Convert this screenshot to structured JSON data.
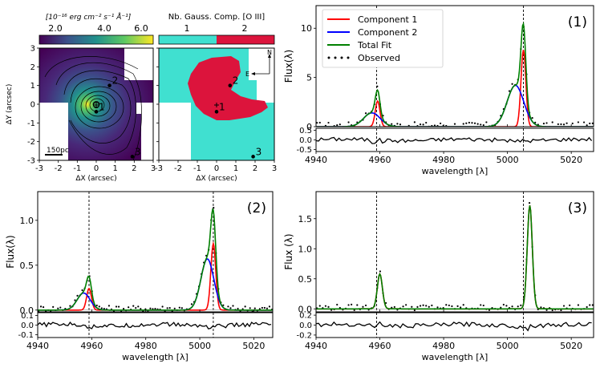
{
  "colorbar_flux": {
    "label": "[10⁻¹⁶ erg cm⁻² s⁻¹ Å⁻¹]",
    "ticks": [
      "2.0",
      "4.0",
      "6.0"
    ]
  },
  "colorbar_ncomp": {
    "label": "Nb. Gauss. Comp. [O III]",
    "ticks": [
      "1",
      "2"
    ],
    "colors": [
      "#40e0d0",
      "#dc143c"
    ]
  },
  "maps": {
    "xlabel": "ΔX (arcsec)",
    "ylabel": "ΔY (arcsec)",
    "ticks": [
      "-3",
      "-2",
      "-1",
      "0",
      "1",
      "2",
      "3"
    ],
    "scalebar": "150pc",
    "compass_n": "N",
    "compass_e": "E",
    "markers": [
      {
        "label": "1",
        "x": 0.0,
        "y": -0.4
      },
      {
        "label": "2",
        "x": 0.7,
        "y": 1.0
      },
      {
        "label": "3",
        "x": 1.9,
        "y": -2.8
      }
    ]
  },
  "chart_data": [
    {
      "type": "line",
      "panel_label": "(1)",
      "xlabel": "wavelength [λ]",
      "ylabel": "Flux(λ)",
      "xlim": [
        4940,
        5027
      ],
      "ylim": [
        0,
        12.3
      ],
      "xticks": [
        "4940",
        "4960",
        "4980",
        "5000",
        "5020"
      ],
      "yticks": [
        "0",
        "5",
        "10"
      ],
      "residual_ylim": [
        -0.6,
        0.6
      ],
      "residual_yticks": [
        "0.5",
        "0.0",
        "-0.5"
      ],
      "vlines": [
        4959,
        5005
      ],
      "legend": [
        "Component 1",
        "Component 2",
        "Total Fit",
        "Observed"
      ],
      "series": [
        {
          "name": "Component 1",
          "color": "#ff0000",
          "gaussians": [
            {
              "center": 4959.3,
              "amp": 2.6,
              "sigma": 0.75
            },
            {
              "center": 5005.0,
              "amp": 7.8,
              "sigma": 0.75
            }
          ]
        },
        {
          "name": "Component 2",
          "color": "#0000ff",
          "gaussians": [
            {
              "center": 4957.5,
              "amp": 1.4,
              "sigma": 2.6
            },
            {
              "center": 5002.5,
              "amp": 4.2,
              "sigma": 2.6
            }
          ]
        },
        {
          "name": "Total Fit",
          "color": "#008000"
        },
        {
          "name": "Observed",
          "color": "#000000"
        }
      ]
    },
    {
      "type": "line",
      "panel_label": "(2)",
      "xlabel": "wavelength [λ]",
      "ylabel": "Flux(λ)",
      "xlim": [
        4940,
        5027
      ],
      "ylim": [
        -0.02,
        1.32
      ],
      "xticks": [
        "4940",
        "4960",
        "4980",
        "5000",
        "5020"
      ],
      "yticks": [
        "0.0",
        "0.5",
        "1.0"
      ],
      "residual_ylim": [
        -0.13,
        0.13
      ],
      "residual_yticks": [
        "0.1",
        "0.0",
        "-0.1"
      ],
      "vlines": [
        4959,
        5005
      ],
      "series": [
        {
          "name": "Component 1",
          "color": "#ff0000",
          "gaussians": [
            {
              "center": 4959.0,
              "amp": 0.24,
              "sigma": 0.9
            },
            {
              "center": 5005.0,
              "amp": 0.74,
              "sigma": 0.9
            }
          ]
        },
        {
          "name": "Component 2",
          "color": "#0000ff",
          "gaussians": [
            {
              "center": 4957.0,
              "amp": 0.19,
              "sigma": 2.4
            },
            {
              "center": 5002.8,
              "amp": 0.57,
              "sigma": 2.4
            }
          ]
        },
        {
          "name": "Total Fit",
          "color": "#008000"
        },
        {
          "name": "Observed",
          "color": "#000000"
        }
      ]
    },
    {
      "type": "line",
      "panel_label": "(3)",
      "xlabel": "wavelength [λ]",
      "ylabel": "Flux (λ)",
      "xlim": [
        4940,
        5027
      ],
      "ylim": [
        -0.05,
        1.95
      ],
      "xticks": [
        "4940",
        "4960",
        "4980",
        "5000",
        "5020"
      ],
      "yticks": [
        "0.0",
        "0.5",
        "1.0",
        "1.5"
      ],
      "residual_ylim": [
        -0.25,
        0.25
      ],
      "residual_yticks": [
        "0.2",
        "0.0",
        "-0.2"
      ],
      "vlines": [
        4959,
        5005
      ],
      "series": [
        {
          "name": "Component 1",
          "color": "#ff0000",
          "gaussians": [
            {
              "center": 4960.0,
              "amp": 0.58,
              "sigma": 0.8
            },
            {
              "center": 5007.0,
              "amp": 1.72,
              "sigma": 0.8
            }
          ]
        },
        {
          "name": "Total Fit",
          "color": "#008000"
        },
        {
          "name": "Observed",
          "color": "#000000"
        }
      ]
    }
  ]
}
